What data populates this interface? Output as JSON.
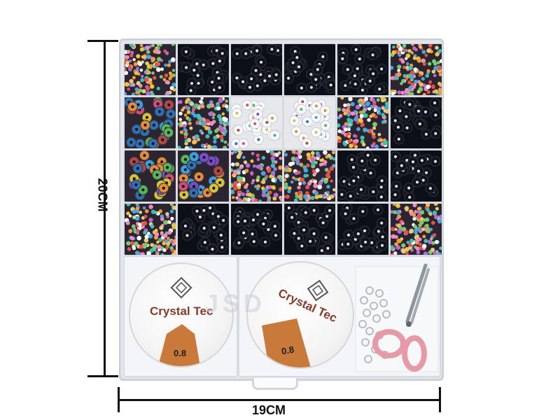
{
  "dimensions": {
    "height_label": "20CM",
    "width_label": "19CM"
  },
  "spools": [
    {
      "brand": "Crystal Tec",
      "size": "0.8"
    },
    {
      "brand": "Crystal Tec",
      "size": "0.8"
    }
  ],
  "watermark": "JSD",
  "bead_grid": {
    "rows": 4,
    "cols": 6,
    "cells": [
      "multicolor-seed",
      "black-letter",
      "black-letter",
      "black-letter",
      "black-letter",
      "multicolor-seed",
      "colorful-letter",
      "multicolor-seed",
      "white-letter",
      "white-letter",
      "multicolor-seed",
      "black-letter",
      "colorful-letter",
      "colorful-letter",
      "multicolor-seed",
      "multicolor-seed",
      "black-letter",
      "black-letter",
      "multicolor-seed",
      "black-letter",
      "black-letter",
      "black-letter",
      "black-letter",
      "multicolor-seed"
    ]
  },
  "colors": {
    "scissors_handle": "#e79aa6",
    "spool_label": "#c9793a"
  }
}
